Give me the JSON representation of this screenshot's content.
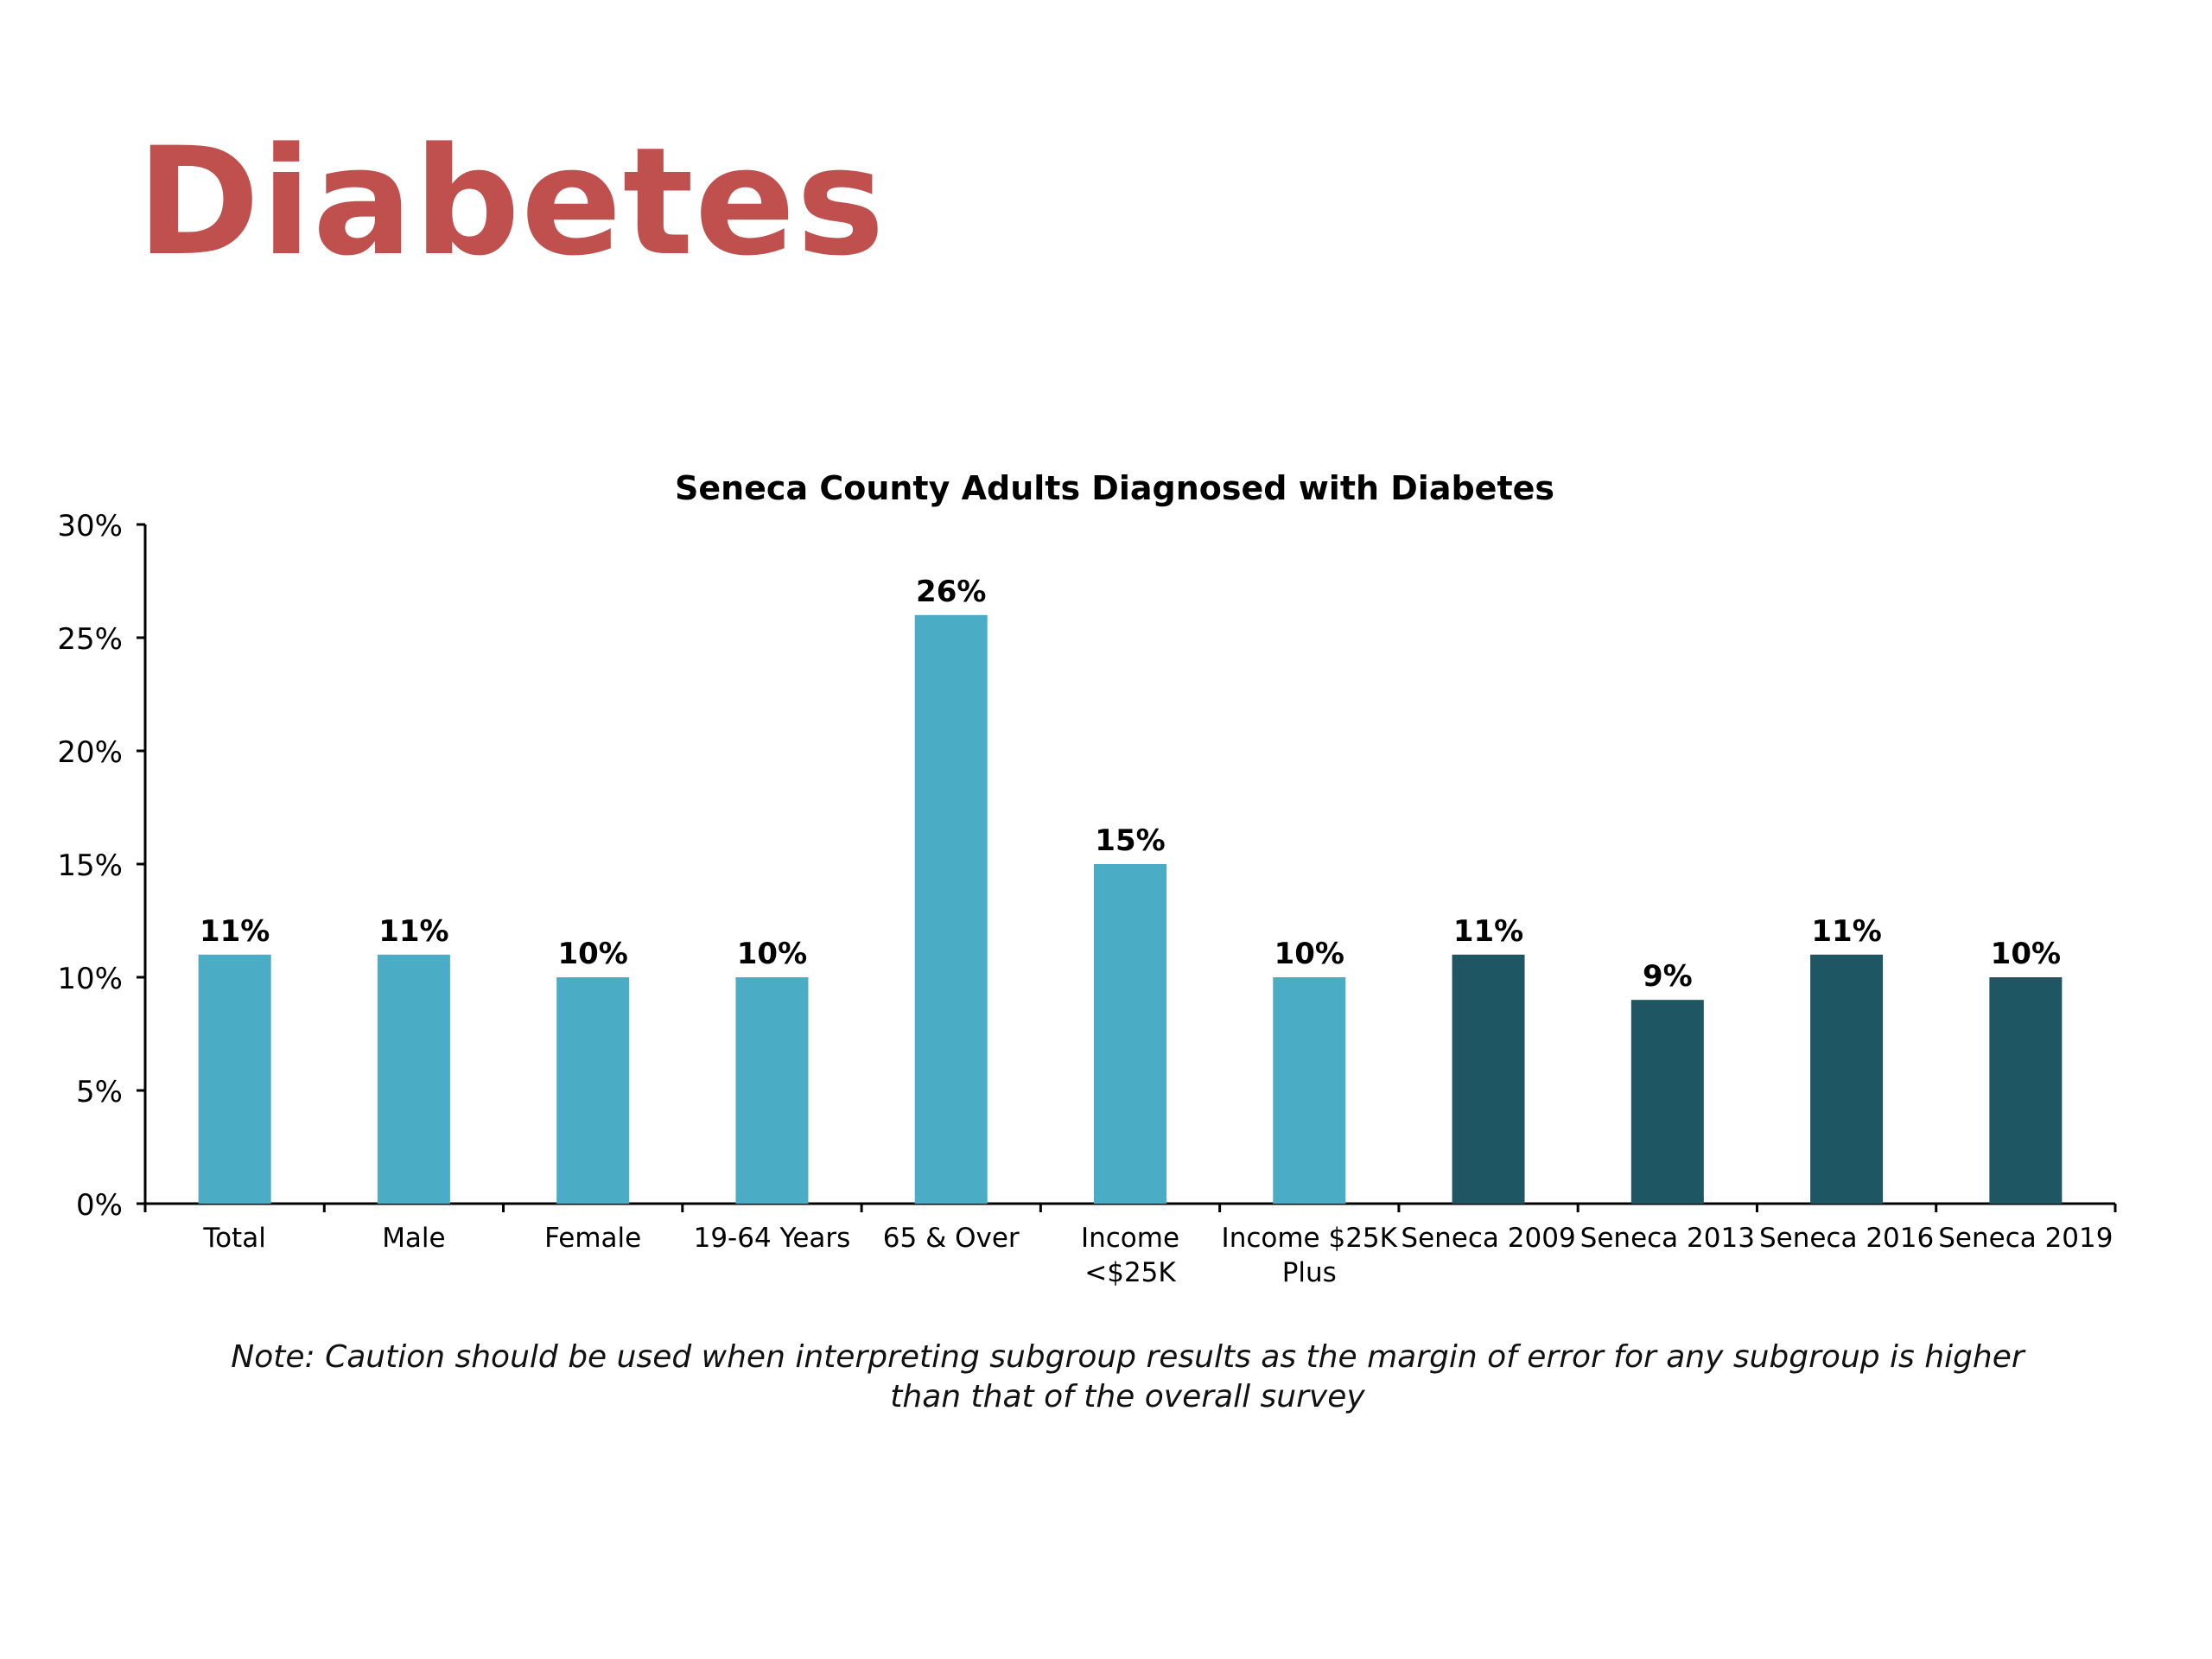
{
  "slide_title": "Diabetes",
  "colors": {
    "title": "#c0504d",
    "light_bar": "#4bacc6",
    "dark_bar": "#1f5663",
    "axis": "#000000",
    "text": "#000000"
  },
  "chart_data": {
    "type": "bar",
    "title": "Seneca County Adults Diagnosed with Diabetes",
    "xlabel": "",
    "ylabel": "",
    "ylim": [
      0,
      30
    ],
    "ytick_step": 5,
    "ytick_labels": [
      "0%",
      "5%",
      "10%",
      "15%",
      "20%",
      "25%",
      "30%"
    ],
    "categories": [
      [
        "Total"
      ],
      [
        "Male"
      ],
      [
        "Female"
      ],
      [
        "19-64 Years"
      ],
      [
        "65 & Over"
      ],
      [
        "Income",
        "<$25K"
      ],
      [
        "Income $25K",
        "Plus"
      ],
      [
        "Seneca 2009"
      ],
      [
        "Seneca 2013"
      ],
      [
        "Seneca 2016"
      ],
      [
        "Seneca 2019"
      ]
    ],
    "values": [
      11,
      11,
      10,
      10,
      26,
      15,
      10,
      11,
      9,
      11,
      10
    ],
    "value_labels": [
      "11%",
      "11%",
      "10%",
      "10%",
      "26%",
      "15%",
      "10%",
      "11%",
      "9%",
      "11%",
      "10%"
    ],
    "bar_colors": [
      "light",
      "light",
      "light",
      "light",
      "light",
      "light",
      "light",
      "dark",
      "dark",
      "dark",
      "dark"
    ],
    "grid": false,
    "legend": "none"
  },
  "note": "Note: Caution should be used when interpreting subgroup results as the margin of error for any subgroup is higher than that of the overall survey"
}
